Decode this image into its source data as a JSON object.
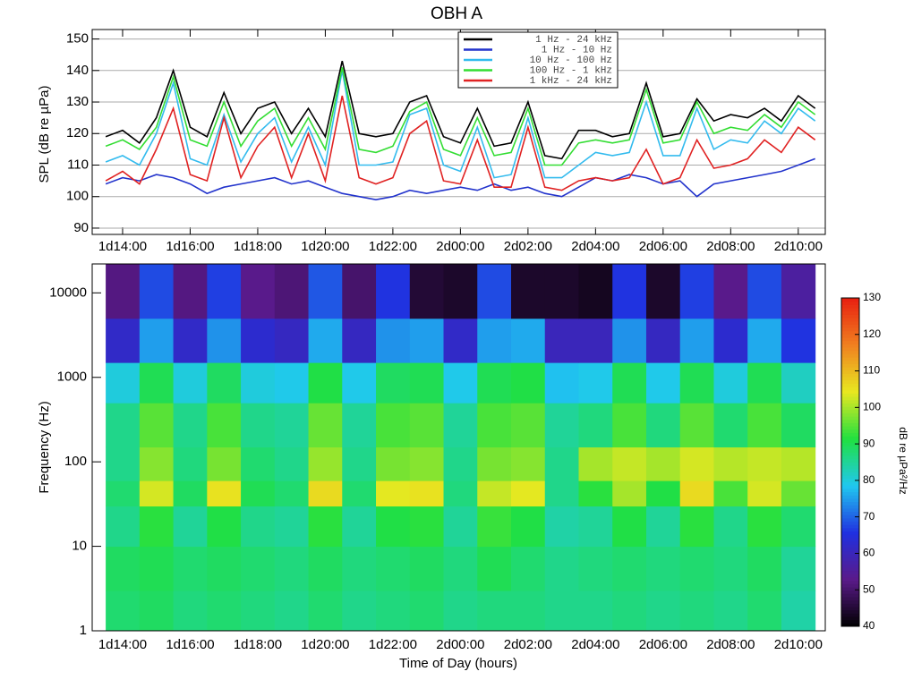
{
  "chart_data": [
    {
      "type": "line",
      "title": "OBH A",
      "ylabel": "SPL (dB re µPa)",
      "x": [
        37.5,
        38,
        38.5,
        39,
        39.5,
        40,
        40.5,
        41,
        41.5,
        42,
        42.5,
        43,
        43.5,
        44,
        44.5,
        45,
        45.5,
        46,
        46.5,
        47,
        47.5,
        48,
        48.5,
        49,
        49.5,
        50,
        50.5,
        51,
        51.5,
        52,
        52.5,
        53,
        53.5,
        54,
        54.5,
        55,
        55.5,
        56,
        56.5,
        57,
        57.5,
        58,
        58.5
      ],
      "xlim": [
        37.1,
        58.8
      ],
      "xticks": [
        {
          "value": 38,
          "label": "1d14:00"
        },
        {
          "value": 40,
          "label": "1d16:00"
        },
        {
          "value": 42,
          "label": "1d18:00"
        },
        {
          "value": 44,
          "label": "1d20:00"
        },
        {
          "value": 46,
          "label": "1d22:00"
        },
        {
          "value": 48,
          "label": "2d00:00"
        },
        {
          "value": 50,
          "label": "2d02:00"
        },
        {
          "value": 52,
          "label": "2d04:00"
        },
        {
          "value": 54,
          "label": "2d06:00"
        },
        {
          "value": 56,
          "label": "2d08:00"
        },
        {
          "value": 58,
          "label": "2d10:00"
        }
      ],
      "ylim": [
        88,
        153
      ],
      "yticks": [
        90,
        100,
        110,
        120,
        130,
        140,
        150
      ],
      "grid": true,
      "legend": "top",
      "series": [
        {
          "name": "1 Hz - 24 kHz",
          "color": "#000000",
          "values": [
            119,
            121,
            117,
            125,
            140,
            122,
            119,
            133,
            120,
            128,
            130,
            120,
            128,
            119,
            143,
            120,
            119,
            120,
            130,
            132,
            119,
            117,
            128,
            116,
            117,
            130,
            113,
            112,
            121,
            121,
            119,
            120,
            136,
            119,
            120,
            131,
            124,
            126,
            125,
            128,
            124,
            132,
            128
          ]
        },
        {
          "name": "1 Hz - 10 Hz",
          "color": "#2233cc",
          "values": [
            104,
            106,
            105,
            107,
            106,
            104,
            101,
            103,
            104,
            105,
            106,
            104,
            105,
            103,
            101,
            100,
            99,
            100,
            102,
            101,
            102,
            103,
            102,
            104,
            102,
            103,
            101,
            100,
            103,
            106,
            105,
            107,
            106,
            104,
            105,
            100,
            104,
            105,
            106,
            107,
            108,
            110,
            112
          ]
        },
        {
          "name": "10 Hz - 100 Hz",
          "color": "#33bbee",
          "values": [
            111,
            113,
            110,
            120,
            136,
            112,
            110,
            126,
            111,
            120,
            125,
            111,
            122,
            110,
            140,
            110,
            110,
            111,
            126,
            128,
            110,
            108,
            122,
            106,
            107,
            125,
            106,
            106,
            110,
            114,
            113,
            114,
            130,
            113,
            113,
            128,
            115,
            118,
            117,
            124,
            120,
            128,
            124
          ]
        },
        {
          "name": "100 Hz - 1 kHz",
          "color": "#33dd33",
          "values": [
            116,
            118,
            115,
            122,
            138,
            118,
            116,
            130,
            116,
            124,
            128,
            116,
            125,
            115,
            141,
            115,
            114,
            116,
            127,
            130,
            115,
            113,
            125,
            113,
            114,
            128,
            110,
            110,
            117,
            118,
            117,
            118,
            134,
            117,
            118,
            130,
            120,
            122,
            121,
            126,
            122,
            130,
            126
          ]
        },
        {
          "name": "1 kHz - 24 kHz",
          "color": "#e02222",
          "values": [
            105,
            108,
            104,
            115,
            128,
            107,
            105,
            125,
            106,
            116,
            122,
            106,
            120,
            105,
            132,
            106,
            104,
            106,
            120,
            124,
            105,
            104,
            118,
            103,
            103,
            122,
            103,
            102,
            105,
            106,
            105,
            106,
            115,
            104,
            106,
            118,
            109,
            110,
            112,
            118,
            114,
            122,
            118
          ]
        }
      ]
    },
    {
      "type": "heatmap",
      "xlabel": "Time of Day (hours)",
      "ylabel": "Frequency (Hz)",
      "colorbar_label": "dB re µPa²/Hz",
      "xbins": [
        37.5,
        38.5,
        39.5,
        40.5,
        41.5,
        42.5,
        43.5,
        44.5,
        45.5,
        46.5,
        47.5,
        48.5,
        49.5,
        50.5,
        51.5,
        52.5,
        53.5,
        54.5,
        55.5,
        56.5,
        57.5,
        58.5
      ],
      "ybins": [
        1,
        3,
        10,
        30,
        60,
        150,
        500,
        1500,
        5000,
        22000
      ],
      "xlim": [
        37.1,
        58.8
      ],
      "xticks": [
        {
          "value": 38,
          "label": "1d14:00"
        },
        {
          "value": 40,
          "label": "1d16:00"
        },
        {
          "value": 42,
          "label": "1d18:00"
        },
        {
          "value": 44,
          "label": "1d20:00"
        },
        {
          "value": 46,
          "label": "1d22:00"
        },
        {
          "value": 48,
          "label": "2d00:00"
        },
        {
          "value": 50,
          "label": "2d02:00"
        },
        {
          "value": 52,
          "label": "2d04:00"
        },
        {
          "value": 54,
          "label": "2d06:00"
        },
        {
          "value": 56,
          "label": "2d08:00"
        },
        {
          "value": 58,
          "label": "2d10:00"
        }
      ],
      "ylim": [
        1,
        22000
      ],
      "yticks": [
        1,
        10,
        100,
        1000,
        10000
      ],
      "ylog": true,
      "zlim": [
        40,
        130
      ],
      "zticks": [
        40,
        50,
        60,
        70,
        80,
        90,
        100,
        110,
        120,
        130
      ],
      "colorscale": [
        "#000000",
        "#5a1a8a",
        "#2030e0",
        "#20c8f0",
        "#20e040",
        "#e8e820",
        "#f08020",
        "#e82010"
      ],
      "values": [
        [
          88,
          89,
          87,
          88,
          87,
          86,
          88,
          86,
          87,
          88,
          86,
          87,
          87,
          86,
          86,
          87,
          86,
          87,
          86,
          88,
          84
        ],
        [
          89,
          90,
          88,
          89,
          88,
          87,
          89,
          87,
          88,
          89,
          87,
          90,
          88,
          86,
          87,
          88,
          87,
          88,
          87,
          89,
          85
        ],
        [
          86,
          92,
          85,
          91,
          86,
          85,
          92,
          85,
          91,
          92,
          85,
          93,
          91,
          84,
          85,
          91,
          85,
          92,
          86,
          92,
          88
        ],
        [
          88,
          103,
          89,
          105,
          90,
          88,
          106,
          88,
          104,
          105,
          87,
          102,
          104,
          86,
          92,
          100,
          91,
          106,
          94,
          103,
          96
        ],
        [
          86,
          98,
          87,
          97,
          88,
          86,
          99,
          86,
          97,
          98,
          86,
          97,
          98,
          86,
          100,
          102,
          100,
          103,
          101,
          102,
          101
        ],
        [
          86,
          95,
          86,
          94,
          86,
          85,
          96,
          85,
          94,
          95,
          85,
          94,
          95,
          85,
          87,
          94,
          87,
          95,
          88,
          94,
          89
        ],
        [
          80,
          90,
          80,
          89,
          80,
          79,
          91,
          79,
          89,
          90,
          79,
          90,
          91,
          78,
          79,
          90,
          79,
          90,
          80,
          90,
          82
        ],
        [
          62,
          75,
          62,
          74,
          63,
          61,
          76,
          61,
          74,
          75,
          62,
          75,
          76,
          60,
          60,
          74,
          61,
          75,
          63,
          76,
          66
        ],
        [
          52,
          68,
          52,
          67,
          53,
          51,
          69,
          50,
          66,
          45,
          44,
          68,
          44,
          44,
          43,
          66,
          44,
          67,
          53,
          68,
          56
        ]
      ]
    }
  ]
}
